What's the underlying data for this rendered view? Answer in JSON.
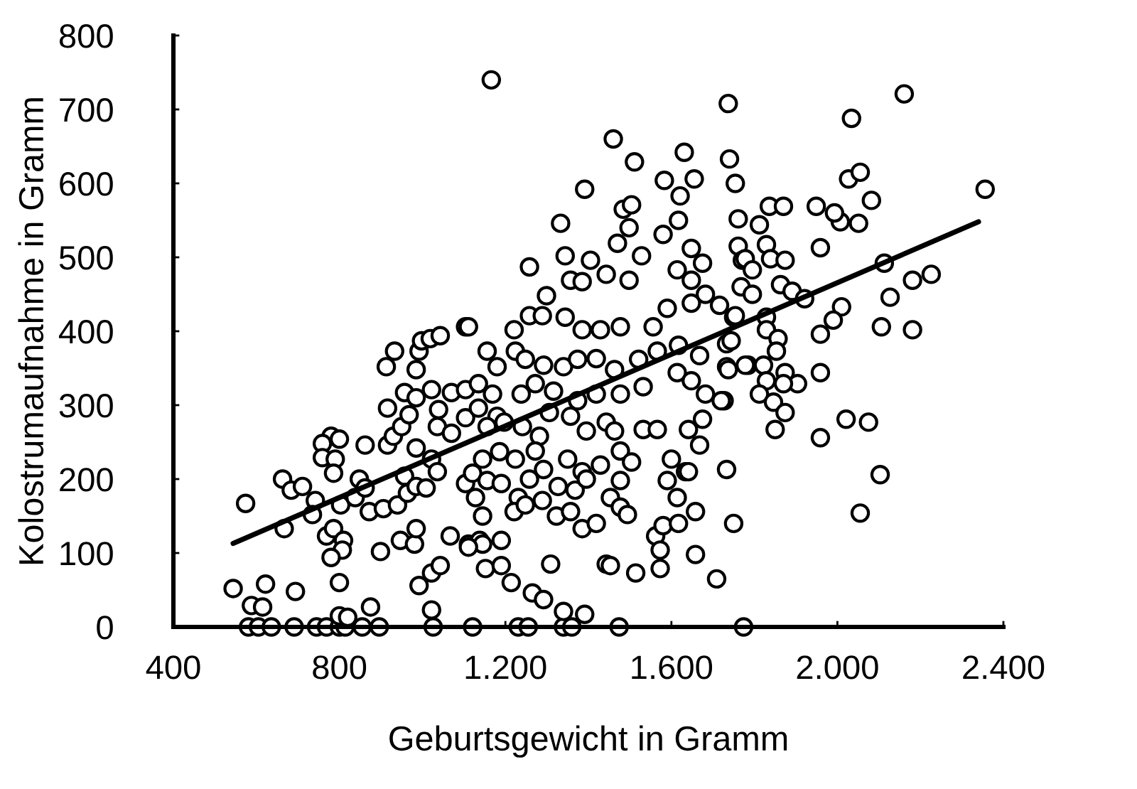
{
  "chart_data": {
    "type": "scatter",
    "xlabel": "Geburtsgewicht in Gramm",
    "ylabel": "Kolostrumaufnahme in Gramm",
    "xlim": [
      400,
      2400
    ],
    "xticks": [
      400,
      800,
      {
        "value": 1200,
        "label": "1.200"
      },
      {
        "value": 1600,
        "label": "1.600"
      },
      {
        "value": 2000,
        "label": "2.000"
      },
      {
        "value": 2400,
        "label": "2.400"
      }
    ],
    "ylim": [
      0,
      800
    ],
    "yticks": [
      0,
      100,
      200,
      300,
      400,
      500,
      600,
      700,
      800
    ],
    "marker": "circle",
    "series": [
      {
        "color": "#000000",
        "x": [
          581,
          605,
          636,
          691,
          745,
          769,
          800,
          814,
          855,
          896,
          1026,
          1121,
          1231,
          1255,
          1340,
          1360,
          1474,
          1774,
          588,
          615,
          800,
          820,
          875,
          1022,
          544,
          622,
          694,
          800,
          992,
          1022,
          1043,
          574,
          1265,
          1292,
          1340,
          1391,
          667,
          663,
          684,
          711,
          742,
          735,
          780,
          759,
          800,
          759,
          790,
          786,
          769,
          786,
          810,
          807,
          780,
          803,
          848,
          862,
          838,
          862,
          899,
          913,
          933,
          916,
          947,
          981,
          985,
          872,
          906,
          940,
          964,
          957,
          985,
          1009,
          992,
          998,
          1019,
          1043,
          985,
          916,
          930,
          950,
          968,
          957,
          985,
          1022,
          985,
          1022,
          1036,
          1039,
          1036,
          1070,
          1104,
          1070,
          1104,
          1067,
          1111,
          1138,
          1152,
          1104,
          1156,
          1145,
          1104,
          1128,
          1333,
          1498,
          1617,
          1761,
          1258,
          1344,
          1405,
          1470,
          1580,
          1648,
          1675,
          1761,
          1771,
          1299,
          1357,
          1385,
          1443,
          1498,
          1528,
          1614,
          1648,
          1682,
          1221,
          1258,
          1289,
          1344,
          1385,
          1429,
          1477,
          1556,
          1590,
          1648,
          1716,
          1750,
          1180,
          1224,
          1248,
          1292,
          1340,
          1374,
          1419,
          1463,
          1521,
          1566,
          1617,
          1668,
          1733,
          1785,
          1135,
          1169,
          1135,
          1180,
          1238,
          1272,
          1316,
          1374,
          1419,
          1477,
          1532,
          1614,
          1648,
          1682,
          1733,
          1778,
          1156,
          1197,
          1241,
          1282,
          1306,
          1357,
          1395,
          1443,
          1463,
          1532,
          1566,
          1641,
          1675,
          1727,
          1186,
          1224,
          1272,
          1292,
          1350,
          1385,
          1429,
          1477,
          1504,
          1600,
          1634,
          1668,
          1733,
          1121,
          1156,
          1190,
          1231,
          1258,
          1327,
          1368,
          1395,
          1477,
          1590,
          1614,
          1641,
          1145,
          1221,
          1248,
          1289,
          1323,
          1357,
          1385,
          1419,
          1453,
          1477,
          1494,
          1562,
          1580,
          1573,
          1617,
          1658,
          1145,
          1190,
          1111,
          1190,
          1214,
          1309,
          1443,
          1453,
          1514,
          1573,
          1658,
          1709,
          1750,
          1720,
          1111,
          1812,
          2007,
          2051,
          1959,
          1829,
          1839,
          1874,
          1778,
          1795,
          1768,
          1795,
          1863,
          1891,
          1921,
          2113,
          2181,
          2226,
          2127,
          2010,
          1990,
          2106,
          2181,
          1959,
          1754,
          1829,
          1829,
          1857,
          1853,
          1744,
          1737,
          1822,
          1874,
          1904,
          1829,
          1870,
          1812,
          1846,
          1874,
          1959,
          1850,
          1959,
          2021,
          2075,
          2103,
          2055,
          1166,
          1391,
          1460,
          1511,
          1737,
          2034,
          2161,
          2356,
          1631,
          1740,
          1583,
          1655,
          1621,
          1754,
          2027,
          2055,
          2082,
          1484,
          1504,
          1836,
          1870,
          1949,
          1993
        ],
        "values": [
          0,
          0,
          0,
          0,
          0,
          0,
          0,
          0,
          0,
          0,
          0,
          0,
          0,
          0,
          0,
          0,
          0,
          0,
          29,
          27,
          15,
          13,
          27,
          23,
          52,
          58,
          48,
          60,
          56,
          73,
          83,
          167,
          46,
          37,
          21,
          17,
          133,
          200,
          185,
          190,
          171,
          152,
          258,
          248,
          254,
          229,
          227,
          208,
          123,
          133,
          117,
          104,
          94,
          165,
          200,
          246,
          175,
          188,
          102,
          352,
          373,
          296,
          117,
          112,
          133,
          156,
          160,
          165,
          181,
          204,
          190,
          188,
          373,
          387,
          390,
          394,
          348,
          246,
          258,
          271,
          287,
          317,
          310,
          321,
          242,
          227,
          210,
          294,
          271,
          317,
          321,
          262,
          283,
          123,
          112,
          117,
          79,
          406,
          373,
          227,
          194,
          175,
          546,
          540,
          550,
          552,
          487,
          502,
          496,
          519,
          531,
          512,
          492,
          515,
          496,
          448,
          469,
          467,
          477,
          469,
          502,
          483,
          469,
          450,
          402,
          421,
          421,
          419,
          402,
          402,
          406,
          406,
          431,
          438,
          435,
          419,
          352,
          373,
          362,
          354,
          352,
          362,
          363,
          348,
          362,
          373,
          381,
          367,
          383,
          354,
          329,
          315,
          296,
          285,
          315,
          329,
          319,
          306,
          315,
          315,
          325,
          344,
          333,
          315,
          352,
          354,
          271,
          277,
          271,
          258,
          290,
          285,
          265,
          277,
          265,
          267,
          267,
          267,
          281,
          306,
          237,
          227,
          238,
          213,
          227,
          210,
          219,
          238,
          223,
          227,
          210,
          246,
          213,
          208,
          198,
          194,
          175,
          200,
          190,
          185,
          200,
          198,
          198,
          175,
          210,
          150,
          156,
          165,
          171,
          150,
          156,
          133,
          140,
          175,
          162,
          152,
          123,
          137,
          104,
          140,
          156,
          112,
          117,
          108,
          83,
          60,
          85,
          85,
          83,
          73,
          79,
          98,
          65,
          140,
          306,
          406,
          544,
          548,
          546,
          513,
          517,
          498,
          496,
          498,
          483,
          460,
          450,
          463,
          454,
          444,
          492,
          469,
          477,
          446,
          433,
          415,
          406,
          402,
          396,
          421,
          419,
          402,
          390,
          373,
          387,
          348,
          354,
          344,
          329,
          333,
          329,
          315,
          304,
          290,
          344,
          267,
          256,
          281,
          277,
          206,
          154,
          740,
          592,
          660,
          629,
          708,
          688,
          721,
          592,
          642,
          633,
          604,
          606,
          583,
          600,
          606,
          615,
          577,
          565,
          571,
          569,
          569,
          569,
          560
        ]
      },
      {
        "type": "line",
        "color": "#000000",
        "marker": "none",
        "x": [
          544,
          2340
        ],
        "values": [
          113,
          548
        ]
      }
    ]
  }
}
